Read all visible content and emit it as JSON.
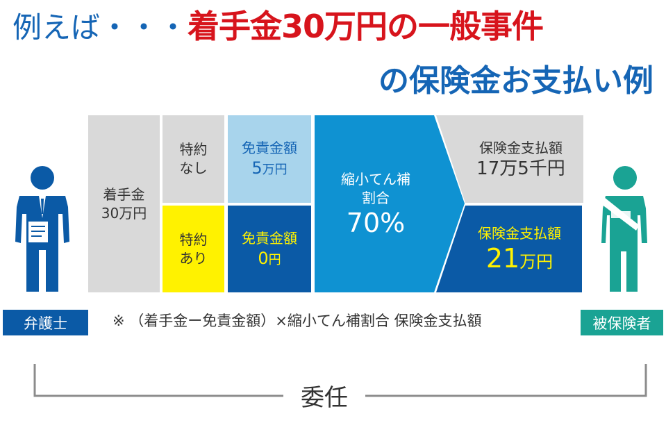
{
  "title": {
    "prefix": "例えば・・・",
    "highlight": "着手金30万円の一般事件",
    "line2": "の保険金お支払い例"
  },
  "diagram": {
    "retainer_line1": "着手金",
    "retainer_line2": "30万円",
    "no_rider_line1": "特約",
    "no_rider_line2": "なし",
    "with_rider_line1": "特約",
    "with_rider_line2": "あり",
    "deductible_no_rider_label": "免責金額",
    "deductible_no_rider_num": "5",
    "deductible_no_rider_unit": "万円",
    "deductible_with_rider_label": "免責金額",
    "deductible_with_rider_num": "0",
    "deductible_with_rider_unit": "円",
    "ratio_line1": "縮小てん補",
    "ratio_line2": "割合",
    "ratio_value": "70%",
    "payout_no_rider_label": "保険金支払額",
    "payout_no_rider_value": "17万5千円",
    "payout_with_rider_label": "保険金支払額",
    "payout_with_rider_num": "21",
    "payout_with_rider_unit": "万円"
  },
  "labels": {
    "lawyer": "弁護士",
    "insured": "被保険者",
    "formula_note": "※ （着手金ー免責金額）×縮小てん補割合 保険金支払額",
    "delegation": "委任"
  },
  "colors": {
    "title_blue": "#1565b5",
    "title_red": "#d7141c",
    "dark_blue": "#0b5aa6",
    "mid_blue": "#0f92d2",
    "light_blue": "#a8d4ec",
    "yellow": "#fff200",
    "gray": "#d9d9d9",
    "lawyer_blue": "#0b5aa6",
    "insured_teal": "#1aa394"
  },
  "icons": {
    "lawyer": "person-with-document-icon",
    "insured": "injured-person-icon"
  }
}
